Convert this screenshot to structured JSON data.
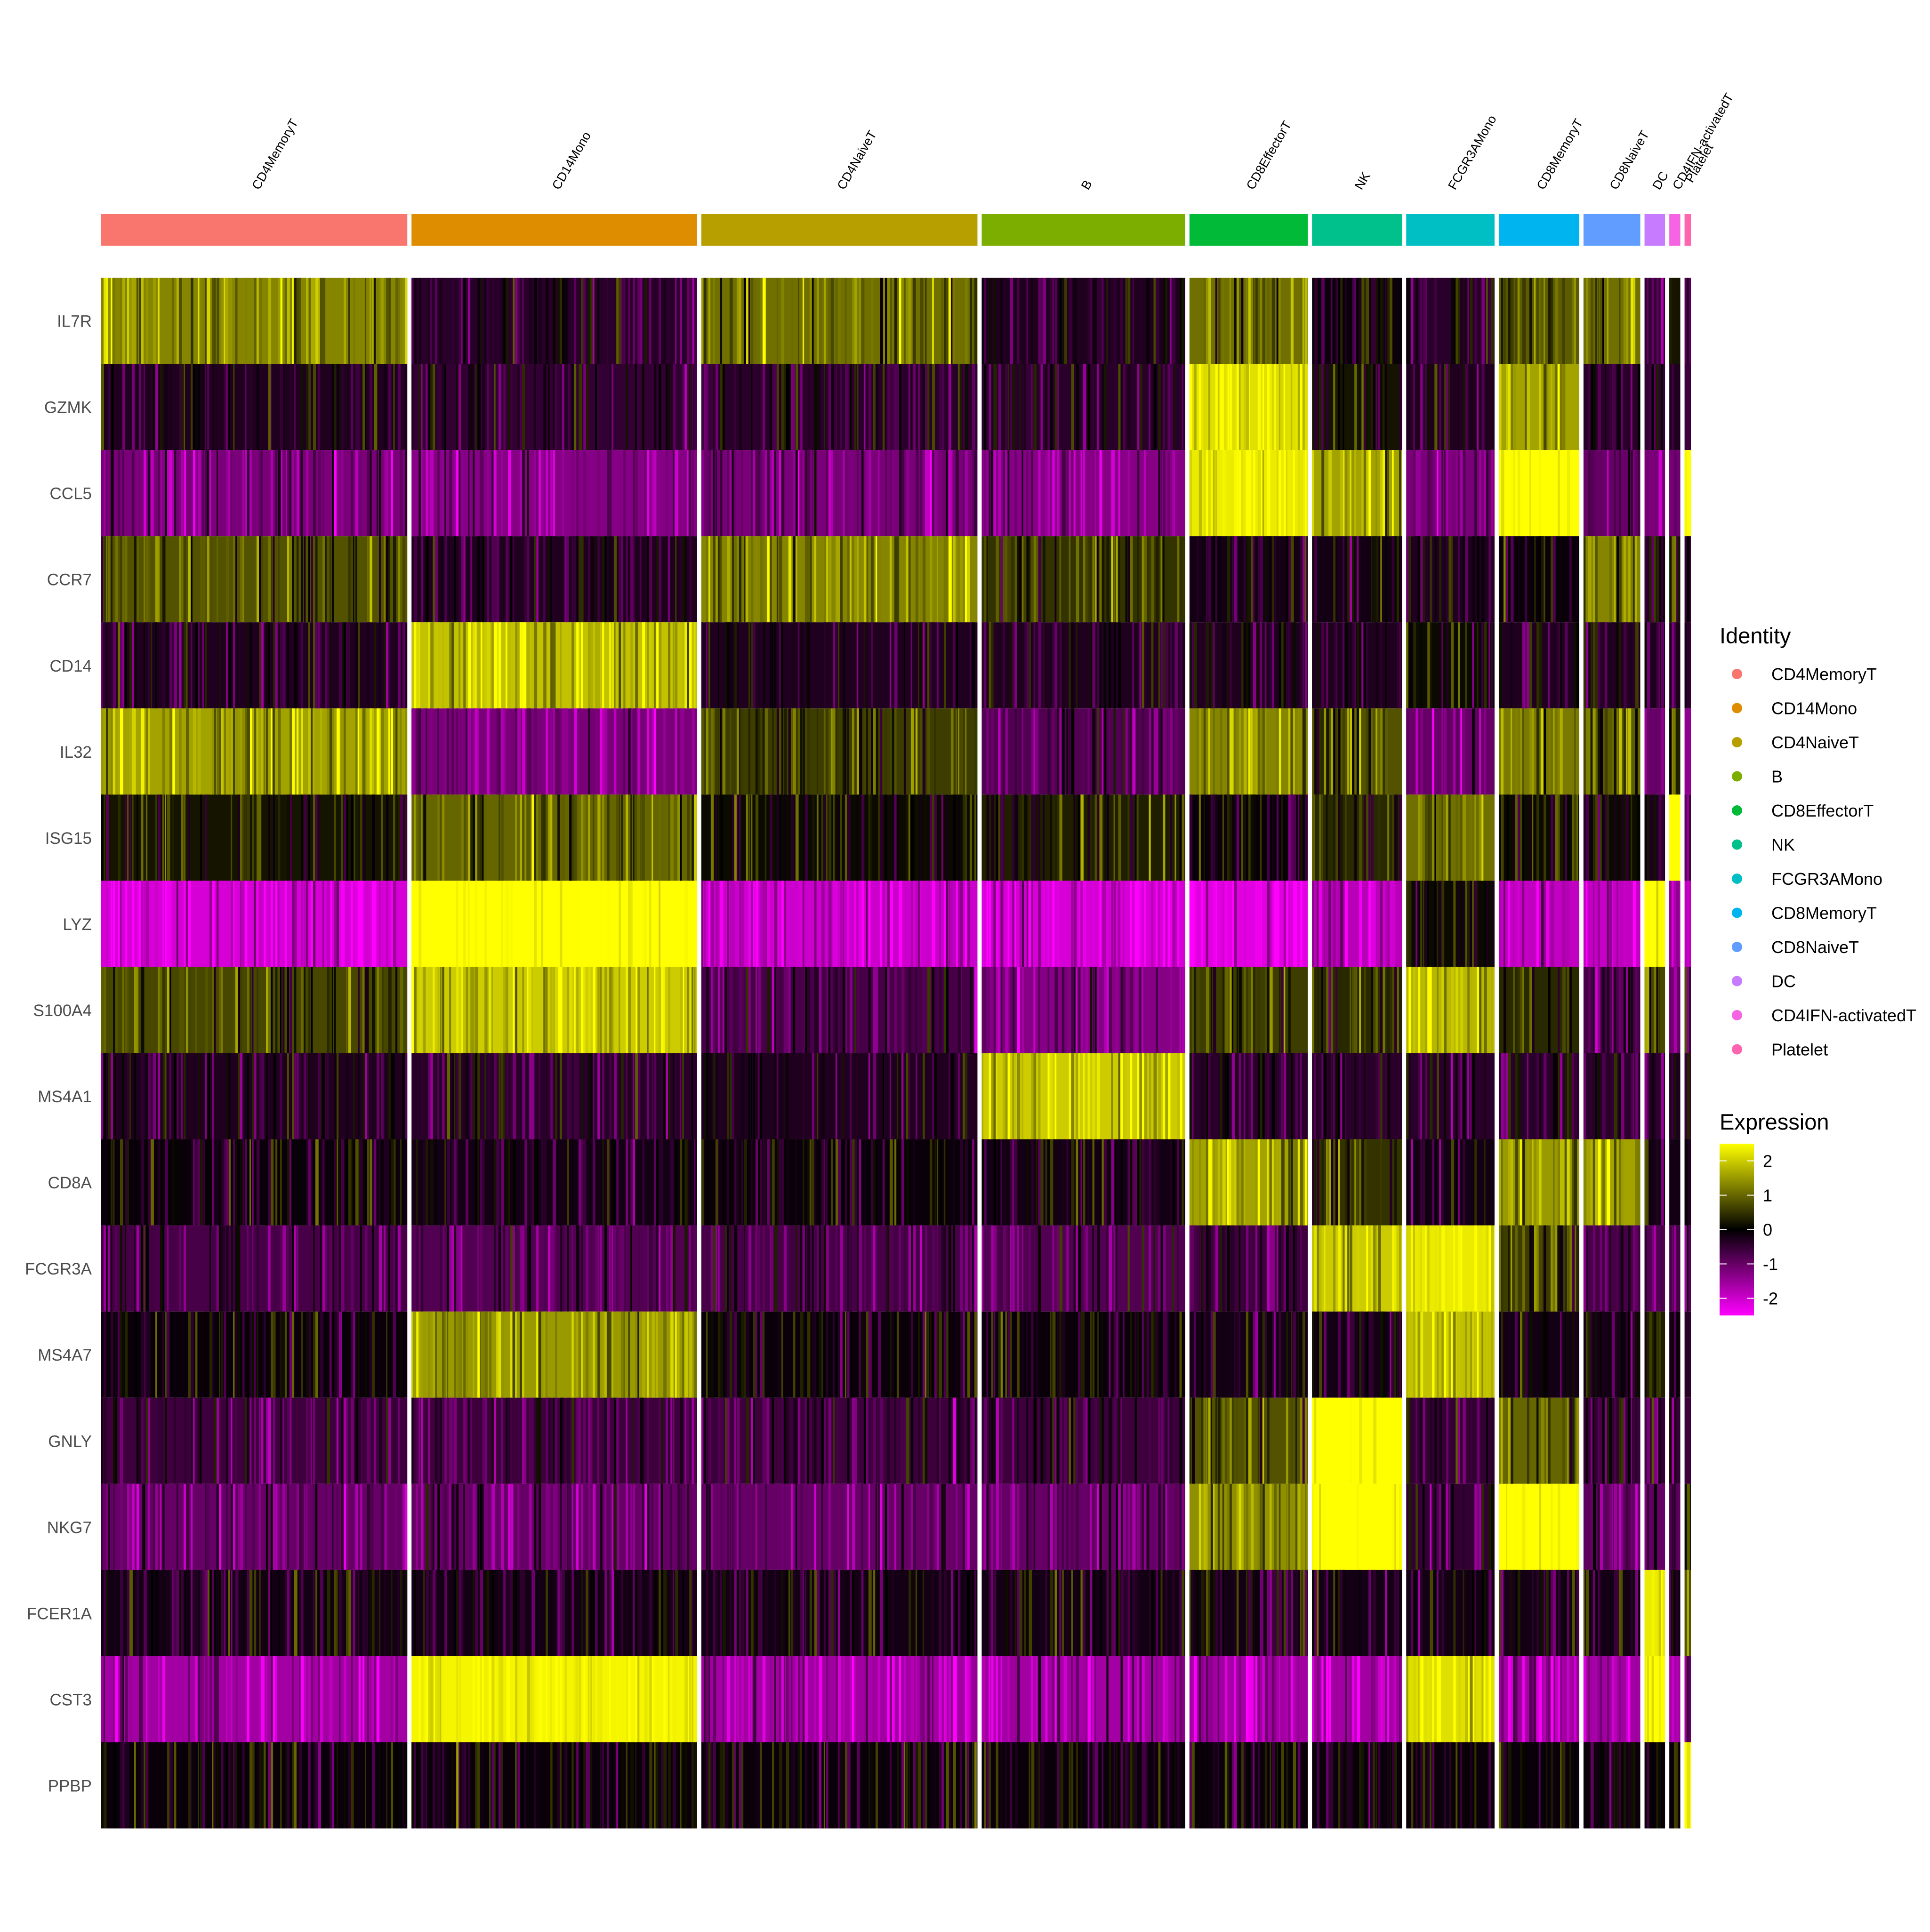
{
  "chart_data": {
    "type": "heatmap",
    "title": "",
    "xlabel": "",
    "ylabel": "",
    "clusters": [
      {
        "name": "CD4MemoryT",
        "color": "#F8766D"
      },
      {
        "name": "CD14Mono",
        "color": "#DE8C00"
      },
      {
        "name": "CD4NaiveT",
        "color": "#B79F00"
      },
      {
        "name": "B",
        "color": "#7CAE00"
      },
      {
        "name": "CD8EffectorT",
        "color": "#00BA38"
      },
      {
        "name": "NK",
        "color": "#00C08B"
      },
      {
        "name": "FCGR3AMono",
        "color": "#00BFC4"
      },
      {
        "name": "CD8MemoryT",
        "color": "#00B4F0"
      },
      {
        "name": "CD8NaiveT",
        "color": "#619CFF"
      },
      {
        "name": "DC",
        "color": "#C77CFF"
      },
      {
        "name": "CD4IFN-activatedT",
        "color": "#F564E3"
      },
      {
        "name": "Platelet",
        "color": "#FF64B0"
      }
    ],
    "cluster_cell_fraction": [
      0.194,
      0.181,
      0.175,
      0.129,
      0.075,
      0.057,
      0.056,
      0.051,
      0.036,
      0.013,
      0.007,
      0.004
    ],
    "genes": [
      "IL7R",
      "GZMK",
      "CCL5",
      "CCR7",
      "CD14",
      "IL32",
      "ISG15",
      "LYZ",
      "S100A4",
      "MS4A1",
      "CD8A",
      "FCGR3A",
      "MS4A7",
      "GNLY",
      "NKG7",
      "FCER1A",
      "CST3",
      "PPBP"
    ],
    "mean_expression": [
      [
        1.3,
        -0.4,
        1.1,
        -0.3,
        1.1,
        -0.1,
        -0.4,
        0.9,
        1.1,
        -0.5,
        0.2,
        -0.8
      ],
      [
        -0.3,
        -0.5,
        -0.4,
        -0.4,
        2.2,
        0.2,
        -0.3,
        1.6,
        -0.4,
        -0.5,
        -0.3,
        -0.6
      ],
      [
        -1.2,
        -1.3,
        -1.2,
        -1.3,
        2.3,
        1.6,
        -1.2,
        2.5,
        -1.0,
        -1.2,
        -1.1,
        2.5
      ],
      [
        0.8,
        -0.3,
        1.3,
        0.5,
        -0.2,
        -0.2,
        -0.3,
        -0.1,
        1.3,
        -0.2,
        0.2,
        -0.5
      ],
      [
        -0.3,
        1.9,
        -0.3,
        -0.3,
        -0.3,
        -0.3,
        0.1,
        -0.3,
        -0.3,
        -0.3,
        -0.3,
        -0.5
      ],
      [
        1.6,
        -1.2,
        0.6,
        -0.8,
        1.3,
        0.8,
        -1.0,
        1.2,
        0.9,
        -1.0,
        0.3,
        -1.4
      ],
      [
        0.2,
        1.0,
        0.1,
        0.3,
        -0.1,
        0.4,
        1.1,
        0.1,
        0.1,
        -0.3,
        2.5,
        -0.6
      ],
      [
        -2.1,
        2.6,
        -2.0,
        -2.1,
        -2.2,
        -1.8,
        0.1,
        -1.9,
        -1.9,
        2.6,
        -1.7,
        -1.8
      ],
      [
        0.7,
        2.0,
        -0.7,
        -1.3,
        0.6,
        0.4,
        1.8,
        0.4,
        -0.7,
        0.7,
        -1.0,
        -0.6
      ],
      [
        -0.3,
        -0.4,
        -0.3,
        2.0,
        -0.4,
        -0.4,
        -0.4,
        -0.4,
        -0.4,
        -0.4,
        -0.3,
        -0.6
      ],
      [
        -0.1,
        -0.2,
        -0.1,
        -0.2,
        1.6,
        0.5,
        -0.2,
        1.5,
        1.6,
        -0.2,
        -0.2,
        -0.3
      ],
      [
        -0.7,
        -0.8,
        -0.7,
        -0.8,
        -0.6,
        2.0,
        2.3,
        0.6,
        -0.7,
        -0.8,
        -0.7,
        -0.8
      ],
      [
        -0.1,
        1.5,
        -0.1,
        -0.1,
        -0.2,
        -0.2,
        1.9,
        -0.2,
        -0.2,
        0.3,
        -0.2,
        -0.4
      ],
      [
        -0.6,
        -0.6,
        -0.6,
        -0.6,
        0.8,
        2.6,
        -0.5,
        1.0,
        -0.5,
        -0.5,
        -0.5,
        -0.6
      ],
      [
        -1.0,
        -1.0,
        -1.0,
        -1.0,
        1.4,
        2.6,
        -0.5,
        2.6,
        -0.9,
        -1.0,
        -0.9,
        0.1
      ],
      [
        -0.2,
        -0.2,
        -0.2,
        -0.2,
        -0.2,
        -0.2,
        -0.2,
        -0.2,
        -0.2,
        2.3,
        -0.2,
        0.8
      ],
      [
        -1.6,
        2.4,
        -1.6,
        -1.6,
        -1.6,
        -1.6,
        2.2,
        -1.6,
        -1.6,
        2.5,
        -1.6,
        -0.9
      ],
      [
        -0.1,
        -0.1,
        -0.1,
        -0.1,
        -0.1,
        -0.1,
        -0.1,
        -0.1,
        -0.1,
        -0.1,
        -0.1,
        2.5
      ]
    ],
    "color_scale": {
      "stops": [
        {
          "value": -2.5,
          "color": "#FF00FF"
        },
        {
          "value": 0,
          "color": "#000000"
        },
        {
          "value": 2.5,
          "color": "#FFFF00"
        }
      ],
      "ticks": [
        "2",
        "1",
        "0",
        "-1",
        "-2"
      ],
      "tick_values": [
        2,
        1,
        0,
        -1,
        -2
      ],
      "range": [
        -2.5,
        2.5
      ]
    },
    "legend_identity_title": "Identity",
    "legend_expression_title": "Expression",
    "legend_placement": "right"
  }
}
